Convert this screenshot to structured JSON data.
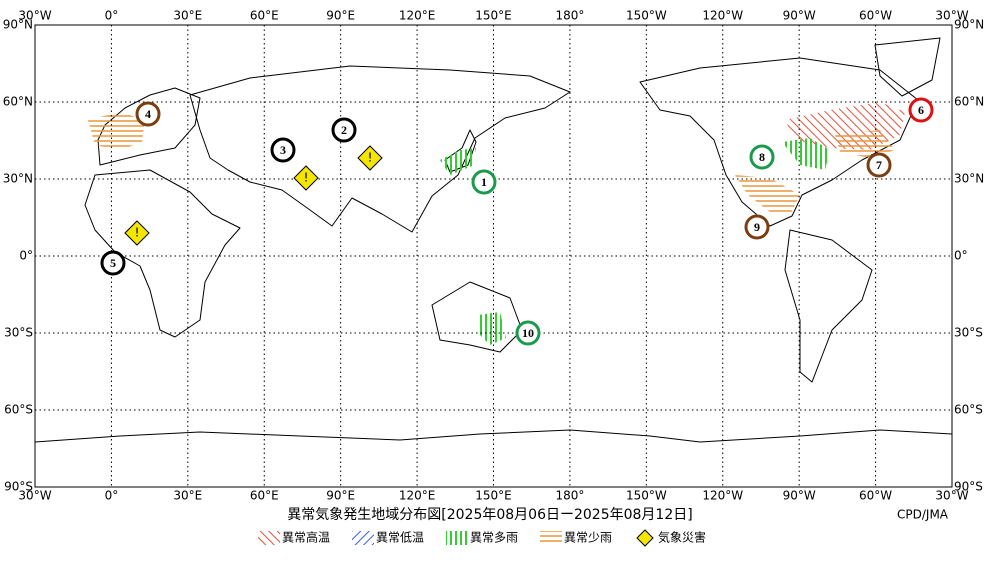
{
  "map": {
    "lon_labels": [
      "30°W",
      "0°",
      "30°E",
      "60°E",
      "90°E",
      "120°E",
      "150°E",
      "180°",
      "150°W",
      "120°W",
      "90°W",
      "60°W",
      "30°W"
    ],
    "lat_labels": [
      "90°N",
      "60°N",
      "30°N",
      "0°",
      "30°S",
      "60°S",
      "90°S"
    ],
    "markers": [
      {
        "label": "1",
        "color": "#1a9a4a"
      },
      {
        "label": "2",
        "color": "#000000"
      },
      {
        "label": "3",
        "color": "#000000"
      },
      {
        "label": "4",
        "color": "#7a3e12"
      },
      {
        "label": "5",
        "color": "#000000"
      },
      {
        "label": "6",
        "color": "#e01010"
      },
      {
        "label": "7",
        "color": "#7a3e12"
      },
      {
        "label": "8",
        "color": "#1a9a4a"
      },
      {
        "label": "9",
        "color": "#7a3e12"
      },
      {
        "label": "10",
        "color": "#1a9a4a"
      }
    ],
    "hazard_mark": "!"
  },
  "caption": {
    "title": "異常気象発生地域分布図[2025年08月06日ー2025年08月12日]",
    "credit": "CPD/JMA"
  },
  "legend": [
    {
      "label": "異常高温",
      "color": "#e8503a"
    },
    {
      "label": "異常低温",
      "color": "#3a5ee8"
    },
    {
      "label": "異常多雨",
      "color": "#33cc33"
    },
    {
      "label": "異常少雨",
      "color": "#e8963a"
    },
    {
      "label": "気象災害",
      "color": "#f5e600"
    }
  ]
}
